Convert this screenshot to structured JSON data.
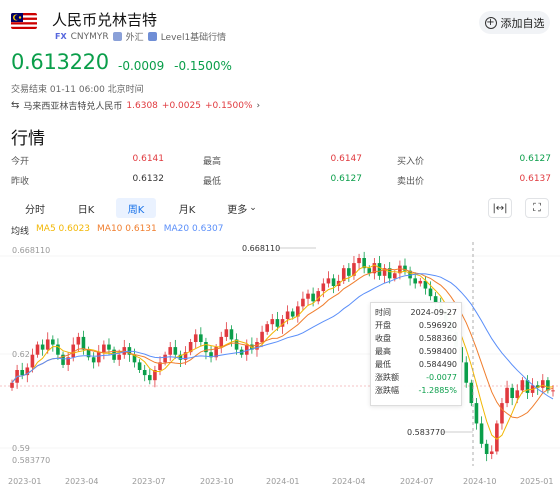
{
  "header": {
    "title": "人民币兑林吉特",
    "fx_tag": "FX",
    "symbol": "CNYMYR",
    "category": "外汇",
    "level": "Level1基础行情",
    "add_label": "添加自选"
  },
  "quote": {
    "price": "0.613220",
    "change": "-0.0009",
    "change_pct": "-0.1500%",
    "status": "交易结束 01-11 06:00 北京时间",
    "related_name": "马来西亚林吉特兑人民币",
    "related_price": "1.6308",
    "related_change": "+0.0025",
    "related_pct": "+0.1500%",
    "price_color": "#0a9e4a",
    "up_color": "#e0393e",
    "down_color": "#0a9e4a"
  },
  "section_title": "行情",
  "stats": {
    "open_label": "今开",
    "open": "0.6141",
    "high_label": "最高",
    "high": "0.6147",
    "bid_label": "买入价",
    "bid": "0.6127",
    "prev_label": "昨收",
    "prev": "0.6132",
    "low_label": "最低",
    "low": "0.6127",
    "ask_label": "卖出价",
    "ask": "0.6137"
  },
  "tabs": [
    "分时",
    "日K",
    "周K",
    "月K",
    "更多"
  ],
  "active_tab": "周K",
  "icons": {
    "fullscreen": "expand-icon",
    "fit": "fit-width-icon",
    "add": "plus-circle-icon",
    "more": "chevron-down-icon"
  },
  "ma": {
    "prefix": "均线",
    "ma5": "MA5 0.6023",
    "ma10": "MA10 0.6131",
    "ma20": "MA20 0.6307",
    "ma5_color": "#f2b705",
    "ma10_color": "#f07e2e",
    "ma20_color": "#5b8ff9"
  },
  "chart_data": {
    "type": "candlestick",
    "y_labels": [
      "0.668110",
      "0.62",
      "0.59",
      "0.583770"
    ],
    "x_labels": [
      "2023-01",
      "2023-04",
      "2023-07",
      "2023-10",
      "2024-01",
      "2024-04",
      "2024-07",
      "2024-10",
      "2025-01"
    ],
    "max_label": "0.668110",
    "min_label": "0.583770",
    "ylim": [
      0.5825,
      0.6705
    ],
    "crosshair_x": "2024-09-27",
    "tooltip": {
      "time_label": "时间",
      "time": "2024-09-27",
      "open_label": "开盘",
      "open": "0.596920",
      "close_label": "收盘",
      "close": "0.588360",
      "high_label": "最高",
      "high": "0.598400",
      "low_label": "最低",
      "low": "0.584490",
      "chg_label": "涨跌额",
      "chg": "-0.0077",
      "pct_label": "涨跌幅",
      "pct": "-1.2885%"
    },
    "closes": [
      0.616,
      0.621,
      0.619,
      0.622,
      0.627,
      0.631,
      0.629,
      0.633,
      0.631,
      0.627,
      0.623,
      0.626,
      0.631,
      0.634,
      0.629,
      0.626,
      0.624,
      0.628,
      0.631,
      0.629,
      0.625,
      0.627,
      0.63,
      0.627,
      0.624,
      0.621,
      0.619,
      0.617,
      0.621,
      0.624,
      0.627,
      0.63,
      0.627,
      0.625,
      0.628,
      0.632,
      0.635,
      0.632,
      0.628,
      0.626,
      0.63,
      0.634,
      0.637,
      0.633,
      0.629,
      0.627,
      0.631,
      0.629,
      0.632,
      0.636,
      0.639,
      0.641,
      0.638,
      0.641,
      0.644,
      0.642,
      0.646,
      0.649,
      0.651,
      0.648,
      0.652,
      0.655,
      0.657,
      0.654,
      0.656,
      0.661,
      0.658,
      0.663,
      0.665,
      0.661,
      0.659,
      0.663,
      0.658,
      0.661,
      0.657,
      0.659,
      0.662,
      0.66,
      0.657,
      0.655,
      0.656,
      0.653,
      0.65,
      0.647,
      0.644,
      0.64,
      0.636,
      0.63,
      0.624,
      0.616,
      0.608,
      0.6,
      0.592,
      0.588,
      0.589,
      0.6,
      0.608,
      0.614,
      0.61,
      0.613,
      0.617,
      0.612,
      0.615,
      0.614,
      0.617,
      0.613,
      0.613
    ]
  }
}
